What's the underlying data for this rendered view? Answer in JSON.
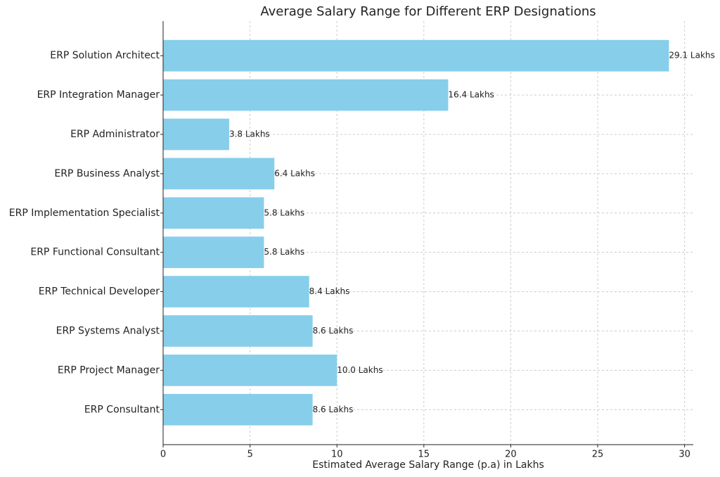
{
  "chart_data": {
    "type": "hbar",
    "title": "Average Salary Range for Different ERP Designations",
    "xlabel": "Estimated Average Salary Range (p.a) in Lakhs",
    "categories": [
      "ERP Solution Architect",
      "ERP Integration Manager",
      "ERP Administrator",
      "ERP Business Analyst",
      "ERP Implementation Specialist",
      "ERP Functional Consultant",
      "ERP Technical Developer",
      "ERP Systems Analyst",
      "ERP Project Manager",
      "ERP Consultant"
    ],
    "values": [
      29.1,
      16.4,
      3.8,
      6.4,
      5.8,
      5.8,
      8.4,
      8.6,
      10.0,
      8.6
    ],
    "value_labels": [
      "29.1 Lakhs",
      "16.4 Lakhs",
      "3.8 Lakhs",
      "6.4 Lakhs",
      "5.8 Lakhs",
      "5.8 Lakhs",
      "8.4 Lakhs",
      "8.6 Lakhs",
      "10.0 Lakhs",
      "8.6 Lakhs"
    ],
    "color": "#87ceeb",
    "xlim": [
      0,
      30.5
    ],
    "xticks": [
      0,
      5,
      10,
      15,
      20,
      25,
      30
    ],
    "grid": true
  }
}
